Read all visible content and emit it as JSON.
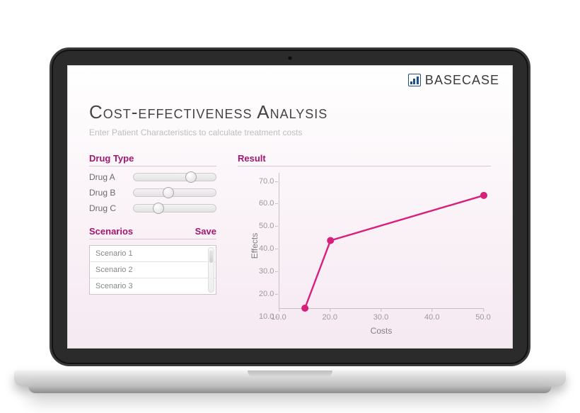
{
  "brand": {
    "name": "BaseCase",
    "display": "BASECASE"
  },
  "title": "Cost-effectiveness Analysis",
  "subtitle": "Enter Patient Characteristics to calculate treatment costs",
  "panels": {
    "drug_type": {
      "heading": "Drug Type",
      "sliders": [
        {
          "label": "Drug A",
          "value": 0.7
        },
        {
          "label": "Drug B",
          "value": 0.42
        },
        {
          "label": "Drug C",
          "value": 0.3
        }
      ]
    },
    "scenarios": {
      "heading": "Scenarios",
      "save_label": "Save",
      "items": [
        "Scenario 1",
        "Scenario 2",
        "Scenario 3"
      ]
    }
  },
  "chart": {
    "heading": "Result",
    "type": "line",
    "xlabel": "Costs",
    "ylabel": "Effects",
    "xlim": [
      10,
      50
    ],
    "ylim": [
      10,
      70
    ],
    "xtick_step": 10,
    "ytick_step": 10,
    "xtick_format": "0.0",
    "ytick_format": "0.0",
    "series": {
      "color": "#d81f7a",
      "marker": "circle",
      "marker_size": 5,
      "line_width": 2.4,
      "points": [
        {
          "x": 15,
          "y": 10
        },
        {
          "x": 20,
          "y": 40
        },
        {
          "x": 50,
          "y": 60
        }
      ]
    },
    "axis_color": "#c9bec6",
    "tick_color": "#9a9a9a",
    "label_color": "#808080",
    "background": "transparent"
  },
  "colors": {
    "accent": "#a2166f",
    "series": "#d81f7a",
    "text_muted": "#bfbfbf"
  }
}
